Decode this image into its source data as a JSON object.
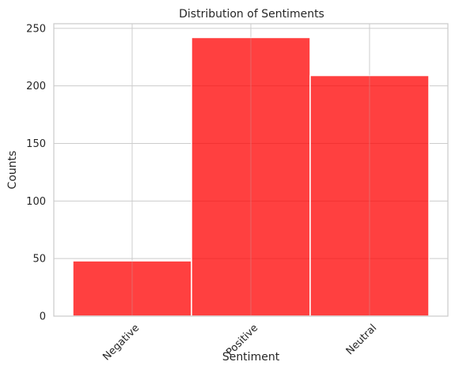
{
  "chart_data": {
    "type": "bar",
    "title": "Distribution of Sentiments",
    "xlabel": "Sentiment",
    "ylabel": "Counts",
    "categories": [
      "Negative",
      "Positive",
      "Neutral"
    ],
    "values": [
      48,
      242,
      209
    ],
    "ylim": [
      0,
      254
    ],
    "yticks": [
      0,
      50,
      100,
      150,
      200,
      250
    ],
    "grid": true,
    "bar_color": "#ff0000",
    "bar_alpha": 0.75,
    "xtick_rotation": 45
  }
}
